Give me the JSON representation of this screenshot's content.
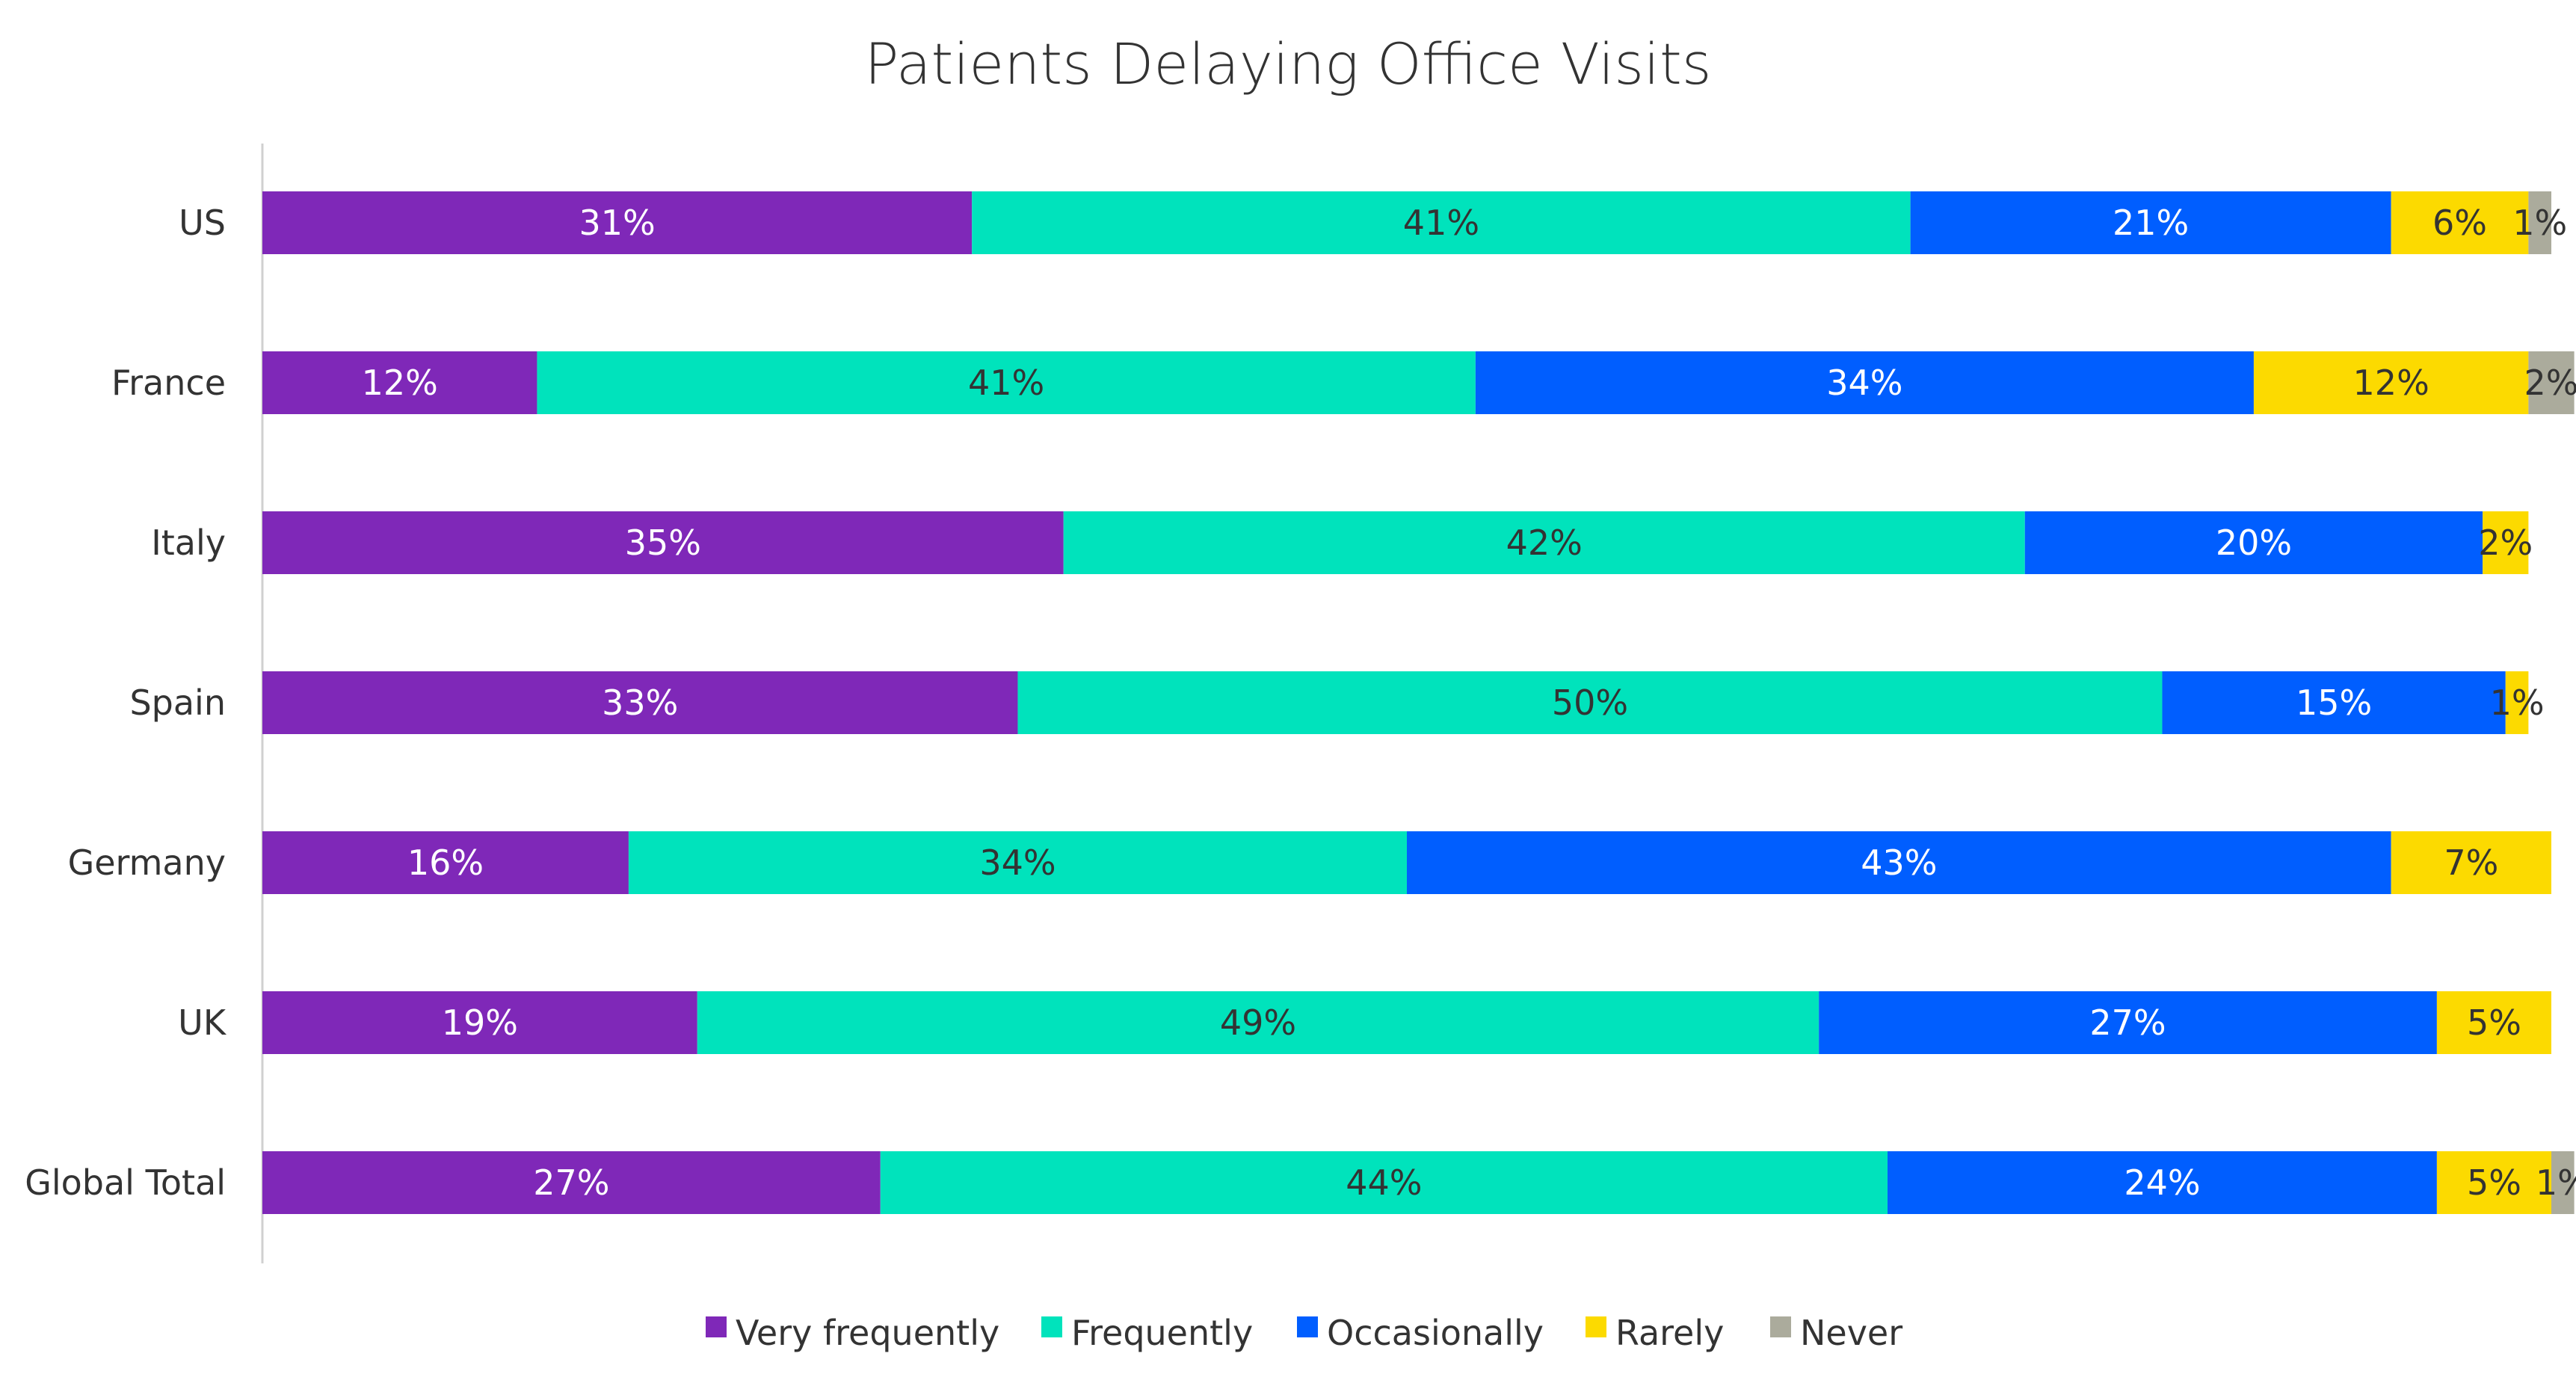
{
  "chart_data": {
    "type": "bar",
    "orientation": "horizontal",
    "stacked": true,
    "title": "Patients Delaying Office Visits",
    "xlabel": "",
    "ylabel": "",
    "xlim": [
      0,
      100
    ],
    "grid": false,
    "legend_position": "bottom",
    "categories": [
      "US",
      "France",
      "Italy",
      "Spain",
      "Germany",
      "UK",
      "Global Total"
    ],
    "series": [
      {
        "name": "Very frequently",
        "color": "#7F28B8",
        "label_color": "#ffffff",
        "values": [
          31,
          12,
          35,
          33,
          16,
          19,
          27
        ]
      },
      {
        "name": "Frequently",
        "color": "#00E3BC",
        "label_color": "#333333",
        "values": [
          41,
          41,
          42,
          50,
          34,
          49,
          44
        ]
      },
      {
        "name": "Occasionally",
        "color": "#005EFF",
        "label_color": "#ffffff",
        "values": [
          21,
          34,
          20,
          15,
          43,
          27,
          24
        ]
      },
      {
        "name": "Rarely",
        "color": "#FCDA00",
        "label_color": "#333333",
        "values": [
          6,
          12,
          2,
          1,
          7,
          5,
          5
        ]
      },
      {
        "name": "Never",
        "color": "#ABAB9C",
        "label_color": "#333333",
        "values": [
          1,
          2,
          0,
          0,
          0,
          0,
          1
        ]
      }
    ],
    "value_format": "{v}%"
  }
}
